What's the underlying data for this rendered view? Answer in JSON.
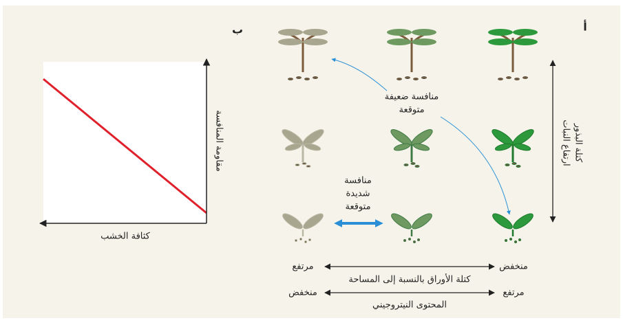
{
  "panel_a": {
    "label": "أ",
    "weak_competition": [
      "منافسة ضعيفة",
      "متوقعة"
    ],
    "strong_competition": [
      "منافسة",
      "شديدة",
      "متوقعة"
    ],
    "vertical_axis": [
      "ارتفاع النبات",
      "كتلة البذور"
    ],
    "axis_1": {
      "left": "مرتفع",
      "right": "منخفض",
      "title": "كتلة الأوراق بالنسبة إلى المساحة"
    },
    "axis_2": {
      "left": "منخفض",
      "right": "مرتفع",
      "title": "المحتوى النيتروجيني"
    }
  },
  "panel_b": {
    "label": "ب",
    "y_axis": "مقاومة المنافسة",
    "x_axis": "كثافة الخشب"
  }
}
